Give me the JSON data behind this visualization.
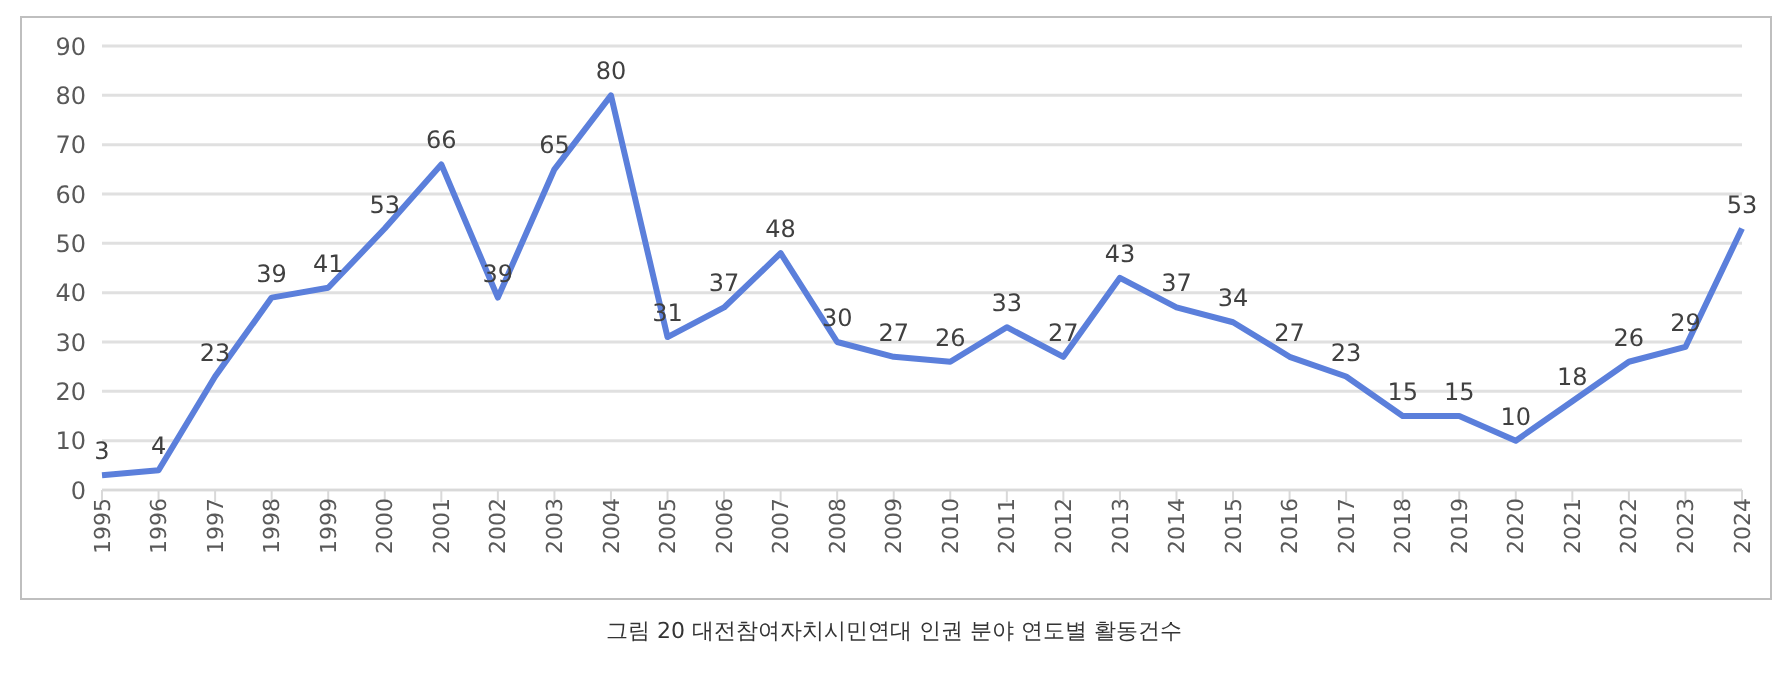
{
  "chart_data": {
    "type": "line",
    "categories": [
      "1995",
      "1996",
      "1997",
      "1998",
      "1999",
      "2000",
      "2001",
      "2002",
      "2003",
      "2004",
      "2005",
      "2006",
      "2007",
      "2008",
      "2009",
      "2010",
      "2011",
      "2012",
      "2013",
      "2014",
      "2015",
      "2016",
      "2017",
      "2018",
      "2019",
      "2020",
      "2021",
      "2022",
      "2023",
      "2024"
    ],
    "series": [
      {
        "color": "#5b7fdb",
        "values": [
          3,
          4,
          23,
          39,
          41,
          53,
          66,
          39,
          65,
          80,
          31,
          37,
          48,
          30,
          27,
          26,
          33,
          27,
          43,
          37,
          34,
          27,
          23,
          15,
          15,
          10,
          18,
          26,
          29,
          53
        ]
      }
    ],
    "ylim": [
      0,
      90
    ],
    "yticks": [
      0,
      10,
      20,
      30,
      40,
      50,
      60,
      70,
      80,
      90
    ],
    "grid": "y",
    "legend": false,
    "marker": "none",
    "line_style": "solid",
    "data_labels": true,
    "annotations": [
      "그림 20 대전참여자치시민연대 인권 분야 연도별 활동건수"
    ]
  }
}
